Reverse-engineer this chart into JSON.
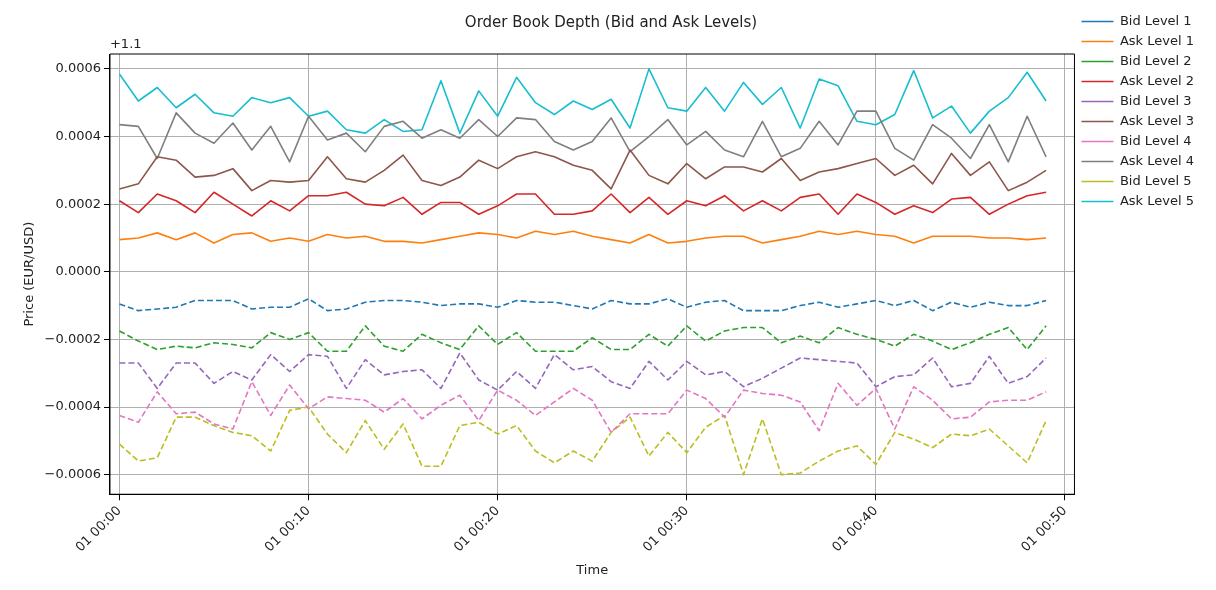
{
  "chart_data": {
    "type": "line",
    "title": "Order Book Depth (Bid and Ask Levels)",
    "xlabel": "Time",
    "ylabel": "Price (EUR/USD)",
    "annotations": [
      "+1.1"
    ],
    "categories": [
      "01 00:00",
      null,
      null,
      null,
      null,
      null,
      null,
      null,
      null,
      null,
      "01 00:10",
      null,
      null,
      null,
      null,
      null,
      null,
      null,
      null,
      null,
      "01 00:20",
      null,
      null,
      null,
      null,
      null,
      null,
      null,
      null,
      null,
      "01 00:30",
      null,
      null,
      null,
      null,
      null,
      null,
      null,
      null,
      null,
      "01 00:40",
      null,
      null,
      null,
      null,
      null,
      null,
      null,
      null,
      null,
      "01 00:50"
    ],
    "ylim": [
      -0.000658,
      0.000644
    ],
    "yticks": [
      {
        "value": -0.0006,
        "label": "−0.0006"
      },
      {
        "value": -0.0004,
        "label": "−0.0004"
      },
      {
        "value": -0.0002,
        "label": "−0.0002"
      },
      {
        "value": 0,
        "label": "0.0000"
      },
      {
        "value": 0.0002,
        "label": "0.0002"
      },
      {
        "value": 0.0004,
        "label": "0.0004"
      },
      {
        "value": 0.0006,
        "label": "0.0006"
      }
    ],
    "grid": true,
    "legend": "right",
    "marker": "none",
    "series": [
      {
        "name": "Bid Level 1",
        "color": "#1f77b4",
        "line_style": "dashed",
        "values": [
          -9.5e-05,
          -0.000115,
          -0.00011,
          -0.000105,
          -8.5e-05,
          -8.5e-05,
          -8.5e-05,
          -0.00011,
          -0.000105,
          -0.000105,
          -8e-05,
          -0.000115,
          -0.00011,
          -9e-05,
          -8.5e-05,
          -8.5e-05,
          -9e-05,
          -0.0001,
          -9.5e-05,
          -9.5e-05,
          -0.000105,
          -8.5e-05,
          -9e-05,
          -9e-05,
          -0.0001,
          -0.00011,
          -8.5e-05,
          -9.5e-05,
          -9.5e-05,
          -8e-05,
          -0.000105,
          -9e-05,
          -8.5e-05,
          -0.000115,
          -0.000115,
          -0.000115,
          -0.0001,
          -9e-05,
          -0.000105,
          -9.5e-05,
          -8.5e-05,
          -0.0001,
          -8.5e-05,
          -0.000115,
          -9e-05,
          -0.000105,
          -9e-05,
          -0.0001,
          -0.0001,
          -8.5e-05,
          null
        ]
      },
      {
        "name": "Ask Level 1",
        "color": "#ff7f0e",
        "line_style": "solid",
        "values": [
          9.5e-05,
          0.0001,
          0.000115,
          9.5e-05,
          0.000115,
          8.5e-05,
          0.00011,
          0.000115,
          9e-05,
          0.0001,
          9e-05,
          0.00011,
          0.0001,
          0.000105,
          9e-05,
          9e-05,
          8.5e-05,
          9.5e-05,
          0.000105,
          0.000115,
          0.00011,
          0.0001,
          0.00012,
          0.00011,
          0.00012,
          0.000105,
          9.5e-05,
          8.5e-05,
          0.00011,
          8.5e-05,
          9e-05,
          0.0001,
          0.000105,
          0.000105,
          8.5e-05,
          9.5e-05,
          0.000105,
          0.00012,
          0.00011,
          0.00012,
          0.00011,
          0.000105,
          8.5e-05,
          0.000105,
          0.000105,
          0.000105,
          0.0001,
          0.0001,
          9.5e-05,
          0.0001,
          null
        ]
      },
      {
        "name": "Bid Level 2",
        "color": "#2ca02c",
        "line_style": "dashed",
        "values": [
          -0.000175,
          -0.000205,
          -0.00023,
          -0.00022,
          -0.000225,
          -0.00021,
          -0.000215,
          -0.000225,
          -0.00018,
          -0.0002,
          -0.00018,
          -0.000235,
          -0.000235,
          -0.00016,
          -0.00022,
          -0.000235,
          -0.000185,
          -0.00021,
          -0.00023,
          -0.00016,
          -0.000215,
          -0.00018,
          -0.000235,
          -0.000235,
          -0.000235,
          -0.000195,
          -0.00023,
          -0.00023,
          -0.000185,
          -0.00022,
          -0.00016,
          -0.000205,
          -0.000175,
          -0.000165,
          -0.000165,
          -0.00021,
          -0.00019,
          -0.00021,
          -0.000165,
          -0.000185,
          -0.0002,
          -0.00022,
          -0.000185,
          -0.000205,
          -0.00023,
          -0.00021,
          -0.000185,
          -0.000165,
          -0.00023,
          -0.00016,
          null
        ]
      },
      {
        "name": "Ask Level 2",
        "color": "#d62728",
        "line_style": "solid",
        "values": [
          0.00021,
          0.000175,
          0.00023,
          0.00021,
          0.000175,
          0.000235,
          0.0002,
          0.000165,
          0.00021,
          0.00018,
          0.000225,
          0.000225,
          0.000235,
          0.0002,
          0.000195,
          0.00022,
          0.00017,
          0.000205,
          0.000205,
          0.00017,
          0.000195,
          0.00023,
          0.00023,
          0.00017,
          0.00017,
          0.00018,
          0.00023,
          0.000175,
          0.00022,
          0.00017,
          0.00021,
          0.000195,
          0.000225,
          0.00018,
          0.00021,
          0.00018,
          0.00022,
          0.00023,
          0.00017,
          0.00023,
          0.000205,
          0.00017,
          0.000195,
          0.000175,
          0.000215,
          0.00022,
          0.00017,
          0.0002,
          0.000225,
          0.000235,
          null
        ]
      },
      {
        "name": "Bid Level 3",
        "color": "#9467bd",
        "line_style": "dashed",
        "values": [
          -0.00027,
          -0.00027,
          -0.000345,
          -0.00027,
          -0.00027,
          -0.00033,
          -0.000295,
          -0.00032,
          -0.000245,
          -0.000295,
          -0.000245,
          -0.00025,
          -0.000345,
          -0.00026,
          -0.000305,
          -0.000295,
          -0.00029,
          -0.000345,
          -0.00024,
          -0.00032,
          -0.00035,
          -0.000295,
          -0.000345,
          -0.000245,
          -0.00029,
          -0.00028,
          -0.000325,
          -0.000345,
          -0.000265,
          -0.00032,
          -0.000265,
          -0.000305,
          -0.000295,
          -0.00034,
          -0.000315,
          -0.000285,
          -0.000255,
          -0.00026,
          -0.000265,
          -0.00027,
          -0.00034,
          -0.00031,
          -0.000305,
          -0.000255,
          -0.00034,
          -0.00033,
          -0.00025,
          -0.00033,
          -0.00031,
          -0.000255,
          null
        ]
      },
      {
        "name": "Ask Level 3",
        "color": "#8c564b",
        "line_style": "solid",
        "values": [
          0.000245,
          0.00026,
          0.00034,
          0.00033,
          0.00028,
          0.000285,
          0.000305,
          0.00024,
          0.00027,
          0.000265,
          0.00027,
          0.00034,
          0.000275,
          0.000265,
          0.0003,
          0.000345,
          0.00027,
          0.000255,
          0.00028,
          0.00033,
          0.000305,
          0.00034,
          0.000355,
          0.00034,
          0.000315,
          0.0003,
          0.000245,
          0.00036,
          0.000285,
          0.00026,
          0.00032,
          0.000275,
          0.00031,
          0.00031,
          0.000295,
          0.000335,
          0.00027,
          0.000295,
          0.000305,
          0.00032,
          0.000335,
          0.000285,
          0.000315,
          0.00026,
          0.00035,
          0.000285,
          0.000325,
          0.00024,
          0.000265,
          0.0003,
          null
        ]
      },
      {
        "name": "Bid Level 4",
        "color": "#e377c2",
        "line_style": "dashed",
        "values": [
          -0.000425,
          -0.000445,
          -0.000355,
          -0.00042,
          -0.000415,
          -0.00045,
          -0.000465,
          -0.000325,
          -0.000425,
          -0.000335,
          -0.000405,
          -0.00037,
          -0.000375,
          -0.00038,
          -0.000415,
          -0.000375,
          -0.000435,
          -0.000395,
          -0.000365,
          -0.00044,
          -0.00035,
          -0.00038,
          -0.000425,
          -0.000385,
          -0.000345,
          -0.00038,
          -0.000475,
          -0.00042,
          -0.00042,
          -0.00042,
          -0.00035,
          -0.000375,
          -0.00043,
          -0.00035,
          -0.00036,
          -0.000365,
          -0.000385,
          -0.00047,
          -0.00033,
          -0.000395,
          -0.000345,
          -0.000465,
          -0.00034,
          -0.00038,
          -0.000435,
          -0.00043,
          -0.000385,
          -0.00038,
          -0.00038,
          -0.000355,
          null
        ]
      },
      {
        "name": "Ask Level 4",
        "color": "#7f7f7f",
        "line_style": "solid",
        "values": [
          0.000435,
          0.00043,
          0.000335,
          0.00047,
          0.00041,
          0.00038,
          0.00044,
          0.00036,
          0.00043,
          0.000325,
          0.00046,
          0.00039,
          0.00041,
          0.000355,
          0.00043,
          0.000445,
          0.000395,
          0.00042,
          0.000395,
          0.00045,
          0.0004,
          0.000455,
          0.00045,
          0.000385,
          0.00036,
          0.000385,
          0.000455,
          0.000355,
          0.0004,
          0.00045,
          0.000375,
          0.000415,
          0.00036,
          0.00034,
          0.000445,
          0.00034,
          0.000365,
          0.000445,
          0.000375,
          0.000475,
          0.000475,
          0.000365,
          0.00033,
          0.000435,
          0.000395,
          0.000335,
          0.000435,
          0.000325,
          0.00046,
          0.00034,
          null
        ]
      },
      {
        "name": "Bid Level 5",
        "color": "#bcbd22",
        "line_style": "dashed",
        "values": [
          -0.00051,
          -0.00056,
          -0.00055,
          -0.00043,
          -0.00043,
          -0.000455,
          -0.000475,
          -0.000485,
          -0.00053,
          -0.00041,
          -0.0004,
          -0.00048,
          -0.000535,
          -0.00044,
          -0.000525,
          -0.00045,
          -0.000575,
          -0.000575,
          -0.000455,
          -0.000445,
          -0.00048,
          -0.000455,
          -0.00053,
          -0.000565,
          -0.00053,
          -0.00056,
          -0.000475,
          -0.00043,
          -0.000545,
          -0.000475,
          -0.000535,
          -0.00046,
          -0.000425,
          -0.0006,
          -0.000435,
          -0.0006,
          -0.000595,
          -0.00056,
          -0.00053,
          -0.000515,
          -0.00057,
          -0.000475,
          -0.000495,
          -0.00052,
          -0.00048,
          -0.000485,
          -0.000465,
          -0.000515,
          -0.000565,
          -0.00044,
          null
        ]
      },
      {
        "name": "Ask Level 5",
        "color": "#17becf",
        "line_style": "solid",
        "values": [
          0.000585,
          0.000505,
          0.000545,
          0.000485,
          0.000525,
          0.00047,
          0.00046,
          0.000515,
          0.0005,
          0.000515,
          0.00046,
          0.000475,
          0.00042,
          0.00041,
          0.00045,
          0.000415,
          0.00042,
          0.000565,
          0.00041,
          0.000535,
          0.00046,
          0.000575,
          0.0005,
          0.000465,
          0.000505,
          0.00048,
          0.00051,
          0.000425,
          0.0006,
          0.000485,
          0.000475,
          0.000545,
          0.000475,
          0.00056,
          0.000495,
          0.000545,
          0.000425,
          0.00057,
          0.00055,
          0.000445,
          0.000435,
          0.000465,
          0.000595,
          0.000455,
          0.00049,
          0.00041,
          0.000475,
          0.000515,
          0.00059,
          0.000505,
          null
        ]
      }
    ]
  }
}
